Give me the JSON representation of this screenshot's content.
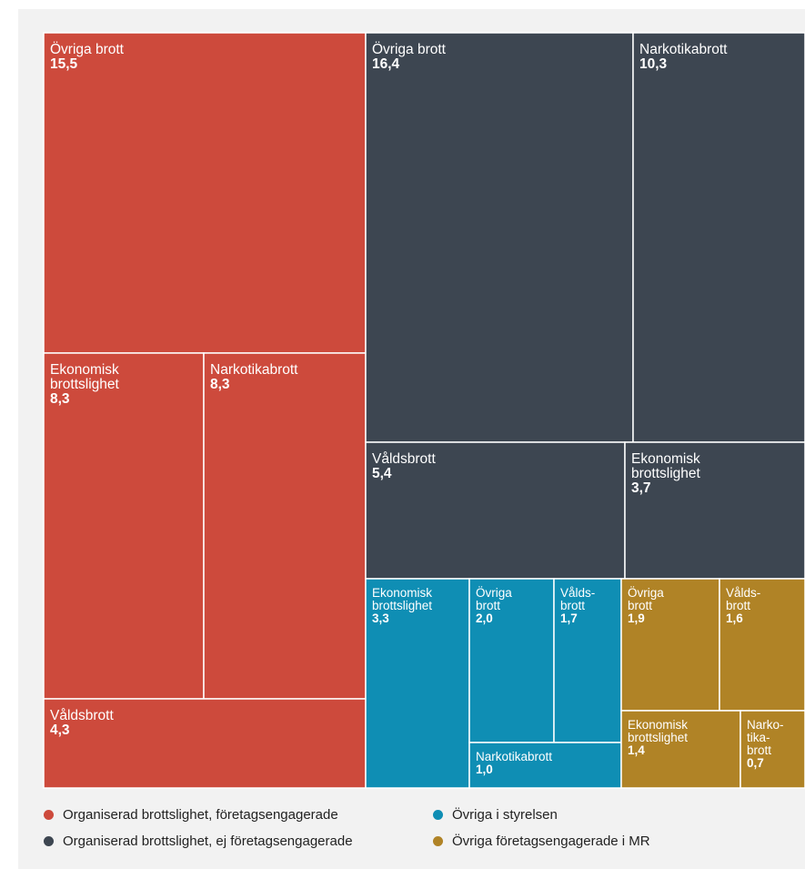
{
  "chart_data": {
    "type": "treemap",
    "value_decimal_separator": ",",
    "groups": [
      {
        "name": "Organiserad brottslighet, företagsengagerade",
        "color": "#cd4a3c",
        "tiles": [
          {
            "label": "Övriga brott",
            "value": 15.5
          },
          {
            "label": "Ekonomisk brottslighet",
            "value": 8.3
          },
          {
            "label": "Narkotikabrott",
            "value": 8.3
          },
          {
            "label": "Våldsbrott",
            "value": 4.3
          }
        ]
      },
      {
        "name": "Organiserad brottslighet, ej företagsengagerade",
        "color": "#3d4651",
        "tiles": [
          {
            "label": "Övriga brott",
            "value": 16.4
          },
          {
            "label": "Narkotikabrott",
            "value": 10.3
          },
          {
            "label": "Våldsbrott",
            "value": 5.4
          },
          {
            "label": "Ekonomisk brottslighet",
            "value": 3.7
          }
        ]
      },
      {
        "name": "Övriga i styrelsen",
        "color": "#0f8eb4",
        "tiles": [
          {
            "label": "Ekonomisk brottslighet",
            "value": 3.3
          },
          {
            "label": "Övriga brott",
            "value": 2.0
          },
          {
            "label": "Våldsbrott",
            "value": 1.7
          },
          {
            "label": "Narkotikabrott",
            "value": 1.0
          }
        ]
      },
      {
        "name": "Övriga företagsengagerade i MR",
        "color": "#b08326",
        "tiles": [
          {
            "label": "Övriga brott",
            "value": 1.9
          },
          {
            "label": "Våldsbrott",
            "value": 1.6
          },
          {
            "label": "Ekonomisk brottslighet",
            "value": 1.4
          },
          {
            "label": "Narkotikabrott",
            "value": 0.7
          }
        ]
      }
    ],
    "legend_position": "bottom"
  }
}
